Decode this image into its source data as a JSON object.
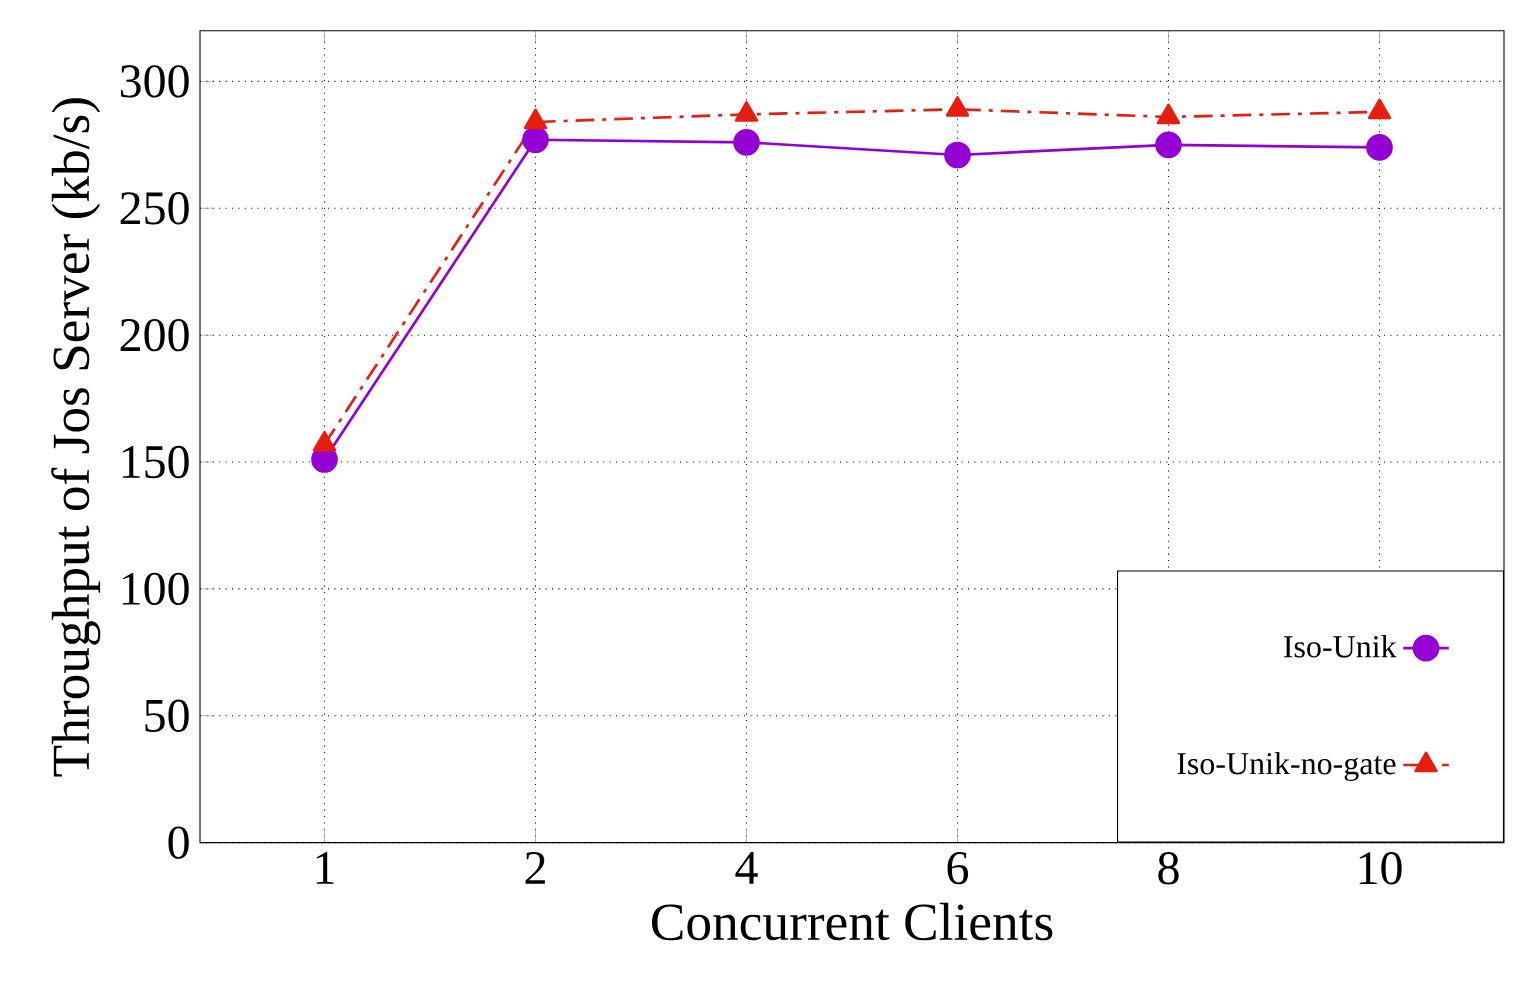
{
  "chart_data": {
    "type": "line",
    "xlabel": "Concurrent Clients",
    "ylabel": "Throughput of Jos Server (kb/s)",
    "categories": [
      "1",
      "2",
      "4",
      "6",
      "8",
      "10"
    ],
    "series": [
      {
        "name": "Iso-Unik",
        "color": "#9400d3",
        "marker": "circle",
        "line_style": "solid",
        "values": [
          151,
          277,
          276,
          271,
          275,
          274
        ]
      },
      {
        "name": "Iso-Unik-no-gate",
        "color": "#e51e10",
        "marker": "triangle",
        "line_style": "dashed",
        "values": [
          157,
          284,
          287,
          289,
          286,
          288
        ]
      }
    ],
    "ylim": [
      0,
      320
    ],
    "yticks": [
      0,
      50,
      100,
      150,
      200,
      250,
      300
    ],
    "grid": true,
    "legend": "bottom right"
  }
}
